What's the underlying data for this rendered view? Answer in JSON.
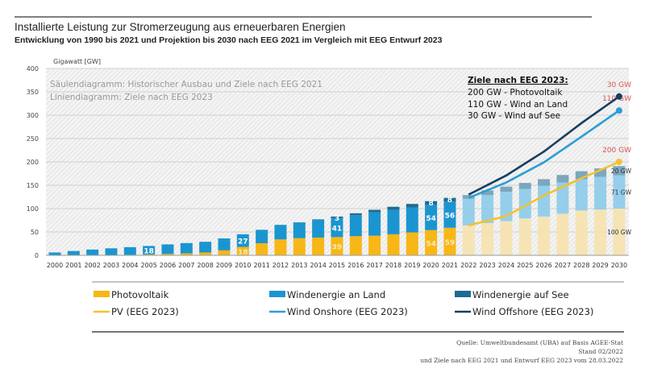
{
  "chart_data": {
    "type": "bar",
    "title": "Installierte Leistung zur Stromerzeugung aus erneuerbaren Energien",
    "subtitle": "Entwicklung von 1990 bis 2021 und Projektion bis 2030 nach EEG 2021 im Vergleich mit EEG Entwurf 2023",
    "ylabel": "Gigawatt [GW]",
    "ylim": [
      0,
      400
    ],
    "yticks": [
      "0",
      "50",
      "100",
      "150",
      "200",
      "250",
      "300",
      "350",
      "400"
    ],
    "stacked": true,
    "grid": true,
    "categories": [
      "2000",
      "2001",
      "2002",
      "2003",
      "2004",
      "2005",
      "2006",
      "2007",
      "2008",
      "2009",
      "2010",
      "2011",
      "2012",
      "2013",
      "2014",
      "2015",
      "2016",
      "2017",
      "2018",
      "2019",
      "2020",
      "2021",
      "2022",
      "2023",
      "2024",
      "2025",
      "2026",
      "2027",
      "2028",
      "2029",
      "2030"
    ],
    "projection_from": "2022",
    "series": [
      {
        "name": "Photovoltaik",
        "color": "#f7b716",
        "projection_color": "#f6e2ae",
        "values": [
          0.1,
          0.2,
          0.3,
          0.4,
          1.1,
          2,
          2.9,
          4.2,
          6,
          10.6,
          18,
          25.9,
          34,
          36.7,
          38,
          39,
          41,
          42,
          45,
          49,
          54,
          59,
          64,
          69,
          73,
          79,
          83,
          89,
          96,
          98,
          100
        ]
      },
      {
        "name": "Windenergie an Land",
        "color": "#1b95d0",
        "projection_color": "#8ccbea",
        "values": [
          6,
          9,
          12,
          14.6,
          16.4,
          18,
          20.5,
          22,
          23,
          25.6,
          27,
          28.5,
          31,
          33.5,
          38,
          41,
          45,
          50,
          52.5,
          53.5,
          54,
          56,
          57,
          60,
          63,
          63,
          66,
          67,
          67,
          70,
          71
        ]
      },
      {
        "name": "Windenergie auf See",
        "color": "#1e6b91",
        "projection_color": "#6f9fb8",
        "values": [
          0,
          0,
          0,
          0,
          0,
          0,
          0,
          0,
          0,
          0,
          0.1,
          0.2,
          0.3,
          0.5,
          1,
          3,
          4,
          5.4,
          6.4,
          7.5,
          8,
          8,
          8,
          10,
          11,
          13,
          14,
          16,
          17,
          18,
          20
        ]
      }
    ],
    "lines": [
      {
        "name": "PV (EEG 2023)",
        "color": "#f1c232",
        "x": [
          "2022",
          "2024",
          "2026",
          "2028",
          "2030"
        ],
        "y": [
          64,
          84,
          128,
          165,
          200
        ]
      },
      {
        "name": "Wind Onshore (EEG 2023)",
        "color": "#2a9fd6",
        "x": [
          "2022",
          "2024",
          "2026",
          "2028",
          "2030"
        ],
        "y": [
          123,
          156,
          199,
          254,
          310
        ]
      },
      {
        "name": "Wind Offshore (EEG 2023)",
        "color": "#163f5e",
        "x": [
          "2022",
          "2024",
          "2026",
          "2028",
          "2030"
        ],
        "y": [
          130,
          171,
          222,
          283,
          340
        ]
      }
    ],
    "data_labels": [
      {
        "category": "2005",
        "series": 1,
        "text": "18"
      },
      {
        "category": "2010",
        "series": 1,
        "text": "27"
      },
      {
        "category": "2010",
        "series": 0,
        "text": "18"
      },
      {
        "category": "2015",
        "series": 2,
        "text": "3"
      },
      {
        "category": "2015",
        "series": 1,
        "text": "41"
      },
      {
        "category": "2015",
        "series": 0,
        "text": "39"
      },
      {
        "category": "2020",
        "series": 2,
        "text": "8"
      },
      {
        "category": "2020",
        "series": 1,
        "text": "54"
      },
      {
        "category": "2020",
        "series": 0,
        "text": "54"
      },
      {
        "category": "2021",
        "series": 2,
        "text": "8"
      },
      {
        "category": "2021",
        "series": 1,
        "text": "56"
      },
      {
        "category": "2021",
        "series": 0,
        "text": "59"
      }
    ],
    "target_labels_2023": [
      {
        "text": "30 GW",
        "value": 340
      },
      {
        "text": "110 GW",
        "value": 310
      },
      {
        "text": "200 GW",
        "value": 200
      }
    ],
    "target_labels_2021": [
      {
        "text": "20 GW",
        "value": 181
      },
      {
        "text": "71 GW",
        "value": 135
      },
      {
        "text": "100 GW",
        "value": 50
      }
    ],
    "annotations": {
      "chart_note_1": "Säulendiagramm: Historischer Ausbau und Ziele nach EEG 2021",
      "chart_note_2": "Liniendiagramm: Ziele nach EEG 2023",
      "targets_heading": "Ziele nach EEG 2023:",
      "targets": [
        "200 GW - Photovoltaik",
        "110 GW -  Wind an Land",
        "30 GW - Wind auf See"
      ]
    },
    "legend": {
      "placement": "bottom",
      "items": [
        "Photovoltaik",
        "Windenergie an Land",
        "Windenergie auf See",
        "PV (EEG 2023)",
        "Wind Onshore (EEG 2023)",
        "Wind Offshore (EEG 2023)"
      ]
    },
    "target_label_color": "#d9534f"
  },
  "source": {
    "line1": "Quelle: Umweltbundesamt (UBA) auf Basis AGEE-Stat",
    "line2": "Stand 02/2022",
    "line3": "und  Ziele nach EEG 2021 und Entwurf EEG 2023 vom 28.03.2022"
  }
}
